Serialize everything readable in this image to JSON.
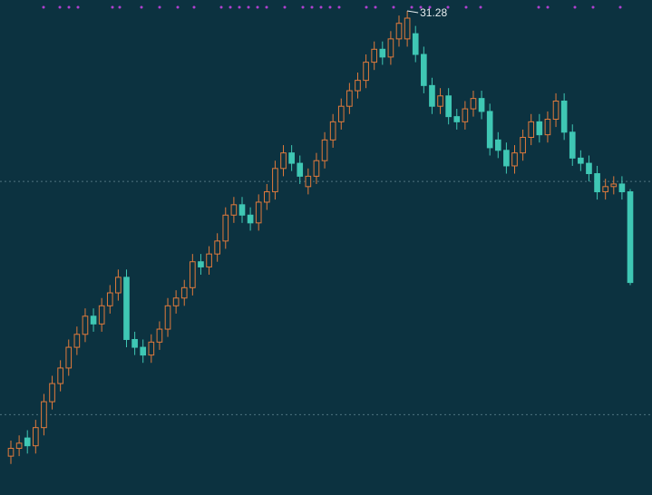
{
  "chart_data": {
    "type": "candlestick",
    "open": [
      14.1,
      14.4,
      14.8,
      14.5,
      15.2,
      16.2,
      16.9,
      17.5,
      18.3,
      18.8,
      19.5,
      19.2,
      19.9,
      20.4,
      21.0,
      18.6,
      18.3,
      18.0,
      18.5,
      19.0,
      19.9,
      20.2,
      20.6,
      21.6,
      21.4,
      21.9,
      22.4,
      23.4,
      23.8,
      23.4,
      23.1,
      23.9,
      24.3,
      25.2,
      25.8,
      25.4,
      24.5,
      24.9,
      25.5,
      26.3,
      27.0,
      27.6,
      28.2,
      28.6,
      29.3,
      29.8,
      29.5,
      30.2,
      30.2,
      30.4,
      29.6,
      28.4,
      27.6,
      28.0,
      27.2,
      27.0,
      27.5,
      27.9,
      27.4,
      26.3,
      25.9,
      25.3,
      25.8,
      26.4,
      27.0,
      26.5,
      27.1,
      27.8,
      26.6,
      25.6,
      25.4,
      25.0,
      24.3,
      24.5,
      24.6,
      24.3
    ],
    "high": [
      14.7,
      14.9,
      15.1,
      15.5,
      16.5,
      17.2,
      17.8,
      18.6,
      19.1,
      19.8,
      19.8,
      20.2,
      20.7,
      21.3,
      21.3,
      18.9,
      18.6,
      18.8,
      19.3,
      20.2,
      20.5,
      20.9,
      21.9,
      21.9,
      22.2,
      22.7,
      23.7,
      24.1,
      24.1,
      23.7,
      24.2,
      24.6,
      25.5,
      26.1,
      26.1,
      25.7,
      25.2,
      25.8,
      26.6,
      27.3,
      27.9,
      28.5,
      28.9,
      29.6,
      30.1,
      30.1,
      30.5,
      31.1,
      31.28,
      30.7,
      29.9,
      28.7,
      28.3,
      28.3,
      27.5,
      27.8,
      28.2,
      28.2,
      27.7,
      26.6,
      26.2,
      26.1,
      26.7,
      27.3,
      27.3,
      27.4,
      28.1,
      28.1,
      26.9,
      25.9,
      25.7,
      25.3,
      24.8,
      24.9,
      24.9,
      24.4
    ],
    "low": [
      13.8,
      14.1,
      14.2,
      14.2,
      14.9,
      15.9,
      16.6,
      17.2,
      18.0,
      18.5,
      18.9,
      18.9,
      19.6,
      20.1,
      18.3,
      18.0,
      17.7,
      17.7,
      18.2,
      18.7,
      19.6,
      19.9,
      20.3,
      21.1,
      21.1,
      21.6,
      22.1,
      23.1,
      23.1,
      22.8,
      22.8,
      23.6,
      24.0,
      24.9,
      25.1,
      24.6,
      24.2,
      24.6,
      25.2,
      26.0,
      26.7,
      27.3,
      27.9,
      28.3,
      29.0,
      29.2,
      29.2,
      29.9,
      29.9,
      29.3,
      28.1,
      27.3,
      27.3,
      26.9,
      26.7,
      26.7,
      27.2,
      27.1,
      25.7,
      25.6,
      25.0,
      25.0,
      25.5,
      26.1,
      26.2,
      26.2,
      26.8,
      26.3,
      25.3,
      25.1,
      24.7,
      24.0,
      24.0,
      24.2,
      24.0,
      20.7
    ],
    "close": [
      14.4,
      14.6,
      14.5,
      15.2,
      16.2,
      16.9,
      17.5,
      18.3,
      18.8,
      19.5,
      19.2,
      19.9,
      20.4,
      21.0,
      18.6,
      18.3,
      18.0,
      18.5,
      19.0,
      19.9,
      20.2,
      20.6,
      21.6,
      21.4,
      21.9,
      22.4,
      23.4,
      23.8,
      23.4,
      23.1,
      23.9,
      24.3,
      25.2,
      25.8,
      25.4,
      24.9,
      24.9,
      25.5,
      26.3,
      27.0,
      27.6,
      28.2,
      28.6,
      29.3,
      29.8,
      29.5,
      30.2,
      30.8,
      31.0,
      29.6,
      28.4,
      27.6,
      28.0,
      27.2,
      27.0,
      27.5,
      27.9,
      27.4,
      26.0,
      25.9,
      25.3,
      25.8,
      26.4,
      27.0,
      26.5,
      27.1,
      27.8,
      26.6,
      25.6,
      25.4,
      25.0,
      24.3,
      24.5,
      24.6,
      24.3,
      20.8
    ],
    "up_color": "#e07a3c",
    "down_color": "#3fc7b4",
    "ylim": [
      12.6,
      31.7
    ],
    "yticks": [
      15.7,
      24.7
    ],
    "grid": true
  }
}
